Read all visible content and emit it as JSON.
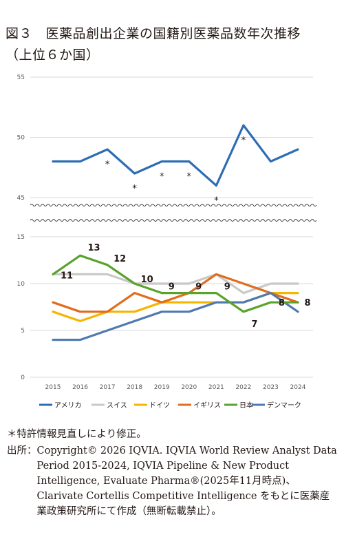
{
  "title": {
    "line1": "図３　医薬品創出企業の国籍別医薬品数年次推移",
    "line2": "（上位６か国）"
  },
  "chart_data": {
    "type": "line",
    "x": [
      2015,
      2016,
      2017,
      2018,
      2019,
      2020,
      2021,
      2022,
      2023,
      2024
    ],
    "panels": [
      {
        "name": "upper",
        "ylim": [
          45,
          55
        ],
        "yticks": [
          45,
          50,
          55
        ],
        "series_names": [
          "アメリカ"
        ]
      },
      {
        "name": "lower",
        "ylim": [
          0,
          15
        ],
        "yticks": [
          0,
          5,
          10,
          15
        ],
        "series_names": [
          "スイス",
          "ドイツ",
          "イギリス",
          "日本",
          "デンマーク"
        ]
      }
    ],
    "series": [
      {
        "name": "アメリカ",
        "color": "#2e6db4",
        "values": [
          48,
          48,
          49,
          47,
          48,
          48,
          46,
          51,
          48,
          49
        ]
      },
      {
        "name": "スイス",
        "color": "#c8c8c8",
        "values": [
          11,
          11,
          11,
          10,
          10,
          10,
          11,
          9,
          10,
          10
        ]
      },
      {
        "name": "ドイツ",
        "color": "#f7b500",
        "values": [
          7,
          6,
          7,
          7,
          8,
          8,
          8,
          8,
          9,
          9
        ]
      },
      {
        "name": "イギリス",
        "color": "#e06c1c",
        "values": [
          8,
          7,
          7,
          9,
          8,
          9,
          11,
          10,
          9,
          8
        ]
      },
      {
        "name": "日本",
        "color": "#5aa32a",
        "values": [
          11,
          13,
          12,
          10,
          9,
          9,
          9,
          7,
          8,
          8
        ]
      },
      {
        "name": "デンマーク",
        "color": "#4f7ab0",
        "values": [
          4,
          4,
          5,
          6,
          7,
          7,
          8,
          8,
          9,
          7
        ]
      }
    ],
    "japan_labels": [
      {
        "x": 2015,
        "text": "11"
      },
      {
        "x": 2016,
        "text": "13"
      },
      {
        "x": 2017,
        "text": "12"
      },
      {
        "x": 2018,
        "text": "10"
      },
      {
        "x": 2019,
        "text": "9"
      },
      {
        "x": 2020,
        "text": "9"
      },
      {
        "x": 2021,
        "text": "9"
      },
      {
        "x": 2022,
        "text": "7"
      },
      {
        "x": 2023,
        "text": "8"
      },
      {
        "x": 2024,
        "text": "8"
      }
    ],
    "asterisks": [
      2017,
      2018,
      2019,
      2020,
      2021,
      2022
    ],
    "asterisk_text": "*",
    "legend_position": "bottom"
  },
  "notes": {
    "revision": "＊特許情報見直しにより修正。",
    "source_label": "出所：",
    "source_text": "Copyright© 2026 IQVIA. IQVIA World Review Analyst Data Period 2015-2024, IQVIA Pipeline & New Product Intelligence, Evaluate Pharma®(2025年11月時点)、Clarivate Cortellis Competitive Intelligence をもとに医薬産業政策研究所にて作成（無断転載禁止）。"
  }
}
